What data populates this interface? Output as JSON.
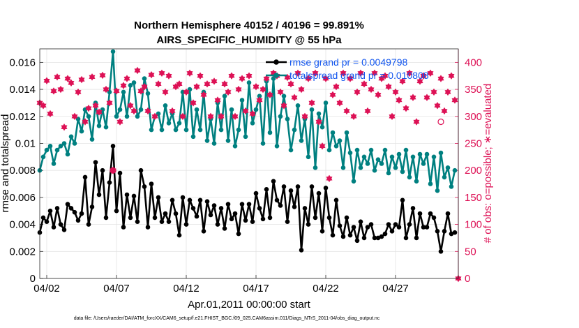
{
  "figure": {
    "title_line1": "Northern Hemisphere 40152 / 40196 = 99.891%",
    "title_line2": "AIRS_SPECIFIC_HUMIDITY @ 55 hPa",
    "xlabel": "Apr.01,2011 00:00:00 start",
    "ylabel_left": "rmse and totalspread",
    "ylabel_right": "# of obs: o=possible; ∗=evaluated",
    "footer": "data file: /Users/raeder/DAI/ATM_forcXX/CAM6_setup/f.e21.FHIST_BGC.f09_025.CAM6assim.011/Diags_NTrS_2011-04/obs_diag_output.nc"
  },
  "colors": {
    "rmse": "#000000",
    "spread": "#008080",
    "obs": "#dd1155",
    "legend_text": "#1155ee",
    "right_axis": "#dd1155"
  },
  "chart_data": {
    "type": "line",
    "x_unit": "days since Apr.01,2011 00:00:00",
    "xlim": [
      0.5,
      30.5
    ],
    "ylim_left": [
      0,
      0.017
    ],
    "ylim_right": [
      0,
      425
    ],
    "x_ticks": [
      {
        "value": 1,
        "label": "04/02"
      },
      {
        "value": 6,
        "label": "04/07"
      },
      {
        "value": 11,
        "label": "04/12"
      },
      {
        "value": 16,
        "label": "04/17"
      },
      {
        "value": 21,
        "label": "04/22"
      },
      {
        "value": 26,
        "label": "04/27"
      }
    ],
    "y_ticks_left": [
      {
        "value": 0,
        "label": "0"
      },
      {
        "value": 0.002,
        "label": "0.002"
      },
      {
        "value": 0.004,
        "label": "0.004"
      },
      {
        "value": 0.006,
        "label": "0.006"
      },
      {
        "value": 0.008,
        "label": "0.008"
      },
      {
        "value": 0.01,
        "label": "0.01"
      },
      {
        "value": 0.012,
        "label": "0.012"
      },
      {
        "value": 0.014,
        "label": "0.014"
      },
      {
        "value": 0.016,
        "label": "0.016"
      }
    ],
    "y_ticks_right": [
      {
        "value": 0,
        "label": "0"
      },
      {
        "value": 50,
        "label": "50"
      },
      {
        "value": 100,
        "label": "100"
      },
      {
        "value": 150,
        "label": "150"
      },
      {
        "value": 200,
        "label": "200"
      },
      {
        "value": 250,
        "label": "250"
      },
      {
        "value": 300,
        "label": "300"
      },
      {
        "value": 350,
        "label": "350"
      },
      {
        "value": 400,
        "label": "400"
      }
    ],
    "grid": true,
    "legend_location": "top-right",
    "series": [
      {
        "name": "rmse grand pr = 0.0049798",
        "axis": "left",
        "marker": "dot",
        "x": [
          0.5,
          0.75,
          1.0,
          1.25,
          1.5,
          1.75,
          2.0,
          2.25,
          2.5,
          2.75,
          3.0,
          3.25,
          3.5,
          3.75,
          4.0,
          4.25,
          4.5,
          4.75,
          5.0,
          5.25,
          5.5,
          5.75,
          6.0,
          6.25,
          6.5,
          6.75,
          7.0,
          7.25,
          7.5,
          7.75,
          8.0,
          8.25,
          8.5,
          8.75,
          9.0,
          9.25,
          9.5,
          9.75,
          10.0,
          10.25,
          10.5,
          10.75,
          11.0,
          11.25,
          11.5,
          11.75,
          12.0,
          12.25,
          12.5,
          12.75,
          13.0,
          13.25,
          13.5,
          13.75,
          14.0,
          14.25,
          14.5,
          14.75,
          15.0,
          15.25,
          15.5,
          15.75,
          16.0,
          16.25,
          16.5,
          16.75,
          17.0,
          17.25,
          17.5,
          17.75,
          18.0,
          18.25,
          18.5,
          18.75,
          19.0,
          19.25,
          19.5,
          19.75,
          20.0,
          20.25,
          20.5,
          20.75,
          21.0,
          21.25,
          21.5,
          21.75,
          22.0,
          22.25,
          22.5,
          22.75,
          23.0,
          23.25,
          23.5,
          23.75,
          24.0,
          24.25,
          24.5,
          24.75,
          25.0,
          25.25,
          25.5,
          25.75,
          26.0,
          26.25,
          26.5,
          26.75,
          27.0,
          27.25,
          27.5,
          27.75,
          28.0,
          28.25,
          28.5,
          28.75,
          29.0,
          29.25,
          29.5,
          29.75,
          30.0,
          30.25
        ],
        "y": [
          0.0034,
          0.0045,
          0.0042,
          0.005,
          0.0038,
          0.0052,
          0.004,
          0.0036,
          0.0055,
          0.0052,
          0.0049,
          0.0043,
          0.0048,
          0.0075,
          0.004,
          0.0053,
          0.0086,
          0.0062,
          0.008,
          0.0045,
          0.0071,
          0.0098,
          0.005,
          0.0078,
          0.0038,
          0.0062,
          0.0045,
          0.0061,
          0.0042,
          0.008,
          0.0068,
          0.0038,
          0.007,
          0.0045,
          0.006,
          0.0042,
          0.0048,
          0.0042,
          0.0058,
          0.0048,
          0.0032,
          0.006,
          0.004,
          0.0058,
          0.0052,
          0.0046,
          0.0058,
          0.0035,
          0.0057,
          0.0047,
          0.0054,
          0.004,
          0.0052,
          0.0037,
          0.0055,
          0.0044,
          0.0048,
          0.0033,
          0.0055,
          0.0043,
          0.0055,
          0.0042,
          0.0063,
          0.0052,
          0.0044,
          0.0066,
          0.0045,
          0.0072,
          0.0058,
          0.0054,
          0.0068,
          0.0042,
          0.0065,
          0.0053,
          0.0068,
          0.0021,
          0.0052,
          0.004,
          0.0068,
          0.0045,
          0.0063,
          0.0035,
          0.0067,
          0.0045,
          0.0032,
          0.0058,
          0.0039,
          0.0031,
          0.0045,
          0.0032,
          0.0038,
          0.0028,
          0.0042,
          0.003,
          0.0038,
          0.004,
          0.003,
          0.003,
          0.0031,
          0.0033,
          0.004,
          0.0035,
          0.004,
          0.0038,
          0.0058,
          0.003,
          0.004,
          0.0052,
          0.003,
          0.0048,
          0.0038,
          0.0038,
          0.0048,
          0.0045,
          0.0035,
          0.002,
          0.0035,
          0.0048,
          0.0033,
          0.0034
        ]
      },
      {
        "name": "totalspread grand pr = 0.010808",
        "axis": "left",
        "marker": "dot",
        "x": [
          0.5,
          0.75,
          1.0,
          1.25,
          1.5,
          1.75,
          2.0,
          2.25,
          2.5,
          2.75,
          3.0,
          3.25,
          3.5,
          3.75,
          4.0,
          4.25,
          4.5,
          4.75,
          5.0,
          5.25,
          5.5,
          5.75,
          6.0,
          6.25,
          6.5,
          6.75,
          7.0,
          7.25,
          7.5,
          7.75,
          8.0,
          8.25,
          8.5,
          8.75,
          9.0,
          9.25,
          9.5,
          9.75,
          10.0,
          10.25,
          10.5,
          10.75,
          11.0,
          11.25,
          11.5,
          11.75,
          12.0,
          12.25,
          12.5,
          12.75,
          13.0,
          13.25,
          13.5,
          13.75,
          14.0,
          14.25,
          14.5,
          14.75,
          15.0,
          15.25,
          15.5,
          15.75,
          16.0,
          16.25,
          16.5,
          16.75,
          17.0,
          17.25,
          17.5,
          17.75,
          18.0,
          18.25,
          18.5,
          18.75,
          19.0,
          19.25,
          19.5,
          19.75,
          20.0,
          20.25,
          20.5,
          20.75,
          21.0,
          21.25,
          21.5,
          21.75,
          22.0,
          22.25,
          22.5,
          22.75,
          23.0,
          23.25,
          23.5,
          23.75,
          24.0,
          24.25,
          24.5,
          24.75,
          25.0,
          25.25,
          25.5,
          25.75,
          26.0,
          26.25,
          26.5,
          26.75,
          27.0,
          27.25,
          27.5,
          27.75,
          28.0,
          28.25,
          28.5,
          28.75,
          29.0,
          29.25,
          29.5,
          29.75,
          30.0,
          30.25
        ],
        "y": [
          0.008,
          0.009,
          0.0095,
          0.0098,
          0.0085,
          0.0095,
          0.0098,
          0.01,
          0.0092,
          0.0105,
          0.01,
          0.0118,
          0.0109,
          0.0125,
          0.012,
          0.0103,
          0.013,
          0.0113,
          0.0125,
          0.0112,
          0.0138,
          0.0168,
          0.012,
          0.0125,
          0.0138,
          0.012,
          0.0143,
          0.0145,
          0.012,
          0.0125,
          0.0148,
          0.0137,
          0.011,
          0.012,
          0.0122,
          0.011,
          0.0128,
          0.0115,
          0.0122,
          0.011,
          0.0115,
          0.0138,
          0.011,
          0.014,
          0.0105,
          0.0125,
          0.011,
          0.0138,
          0.0102,
          0.0118,
          0.01,
          0.013,
          0.011,
          0.0135,
          0.0102,
          0.0125,
          0.0098,
          0.011,
          0.0132,
          0.0105,
          0.0145,
          0.0115,
          0.0125,
          0.0135,
          0.01,
          0.0146,
          0.0108,
          0.0148,
          0.0098,
          0.012,
          0.0135,
          0.0118,
          0.0095,
          0.011,
          0.0128,
          0.0102,
          0.0118,
          0.009,
          0.0125,
          0.0082,
          0.0122,
          0.0112,
          0.013,
          0.0095,
          0.0108,
          0.0098,
          0.0102,
          0.0082,
          0.0108,
          0.0093,
          0.0072,
          0.0095,
          0.0082,
          0.009,
          0.0085,
          0.0095,
          0.008,
          0.0088,
          0.0085,
          0.0095,
          0.0078,
          0.009,
          0.0082,
          0.0092,
          0.0079,
          0.0095,
          0.0075,
          0.009,
          0.0072,
          0.0092,
          0.0085,
          0.0092,
          0.007,
          0.009,
          0.0065,
          0.0093,
          0.0075,
          0.0082,
          0.0068,
          0.008
        ]
      },
      {
        "name": "",
        "axis": "right",
        "marker": "star",
        "x": [
          0.5,
          0.75,
          1.0,
          1.25,
          1.5,
          1.75,
          2.0,
          2.25,
          2.5,
          2.75,
          3.0,
          3.25,
          3.5,
          3.75,
          4.0,
          4.25,
          4.5,
          4.75,
          5.0,
          5.25,
          5.5,
          5.75,
          6.0,
          6.25,
          6.5,
          6.75,
          7.0,
          7.25,
          7.5,
          7.75,
          8.0,
          8.25,
          8.5,
          8.75,
          9.0,
          9.25,
          9.5,
          9.75,
          10.0,
          10.25,
          10.5,
          10.75,
          11.0,
          11.25,
          11.5,
          11.75,
          12.0,
          12.25,
          12.5,
          12.75,
          13.0,
          13.25,
          13.5,
          13.75,
          14.0,
          14.25,
          14.5,
          14.75,
          15.0,
          15.25,
          15.5,
          15.75,
          16.0,
          16.25,
          16.5,
          16.75,
          17.0,
          17.25,
          17.5,
          17.75,
          18.0,
          18.25,
          18.5,
          18.75,
          19.0,
          19.25,
          19.5,
          19.75,
          20.0,
          20.25,
          20.5,
          20.75,
          21.0,
          21.25,
          21.5,
          21.75,
          22.0,
          22.25,
          22.5,
          22.75,
          23.0,
          23.25,
          23.5,
          23.75,
          24.0,
          24.25,
          24.5,
          24.75,
          25.0,
          25.25,
          25.5,
          25.75,
          26.0,
          26.25,
          26.5,
          26.75,
          27.0,
          27.25,
          27.5,
          27.75,
          28.0,
          28.25,
          28.5,
          28.75,
          29.0,
          29.25,
          29.5,
          29.75,
          30.0,
          30.25,
          30.5
        ],
        "y": [
          325,
          320,
          366,
          305,
          347,
          373,
          350,
          280,
          370,
          362,
          300,
          345,
          368,
          290,
          315,
          373,
          320,
          308,
          376,
          350,
          325,
          200,
          347,
          290,
          357,
          370,
          320,
          310,
          385,
          347,
          355,
          310,
          377,
          300,
          360,
          380,
          345,
          375,
          310,
          355,
          360,
          300,
          345,
          380,
          325,
          355,
          375,
          340,
          360,
          300,
          365,
          330,
          300,
          360,
          345,
          375,
          300,
          350,
          370,
          310,
          375,
          305,
          355,
          330,
          350,
          370,
          340,
          380,
          375,
          345,
          320,
          372,
          360,
          335,
          380,
          350,
          300,
          370,
          325,
          380,
          290,
          245,
          370,
          185,
          340,
          355,
          325,
          380,
          310,
          370,
          300,
          345,
          380,
          360,
          310,
          350,
          380,
          340,
          370,
          375,
          355,
          300,
          345,
          330,
          365,
          315,
          380,
          335,
          290,
          365,
          375,
          335,
          380,
          345,
          320,
          370,
          310,
          345,
          375,
          330,
          0
        ]
      },
      {
        "name": "",
        "axis": "right",
        "marker": "circle",
        "x": [
          5.75,
          29.25
        ],
        "y": [
          200,
          290
        ]
      }
    ]
  }
}
